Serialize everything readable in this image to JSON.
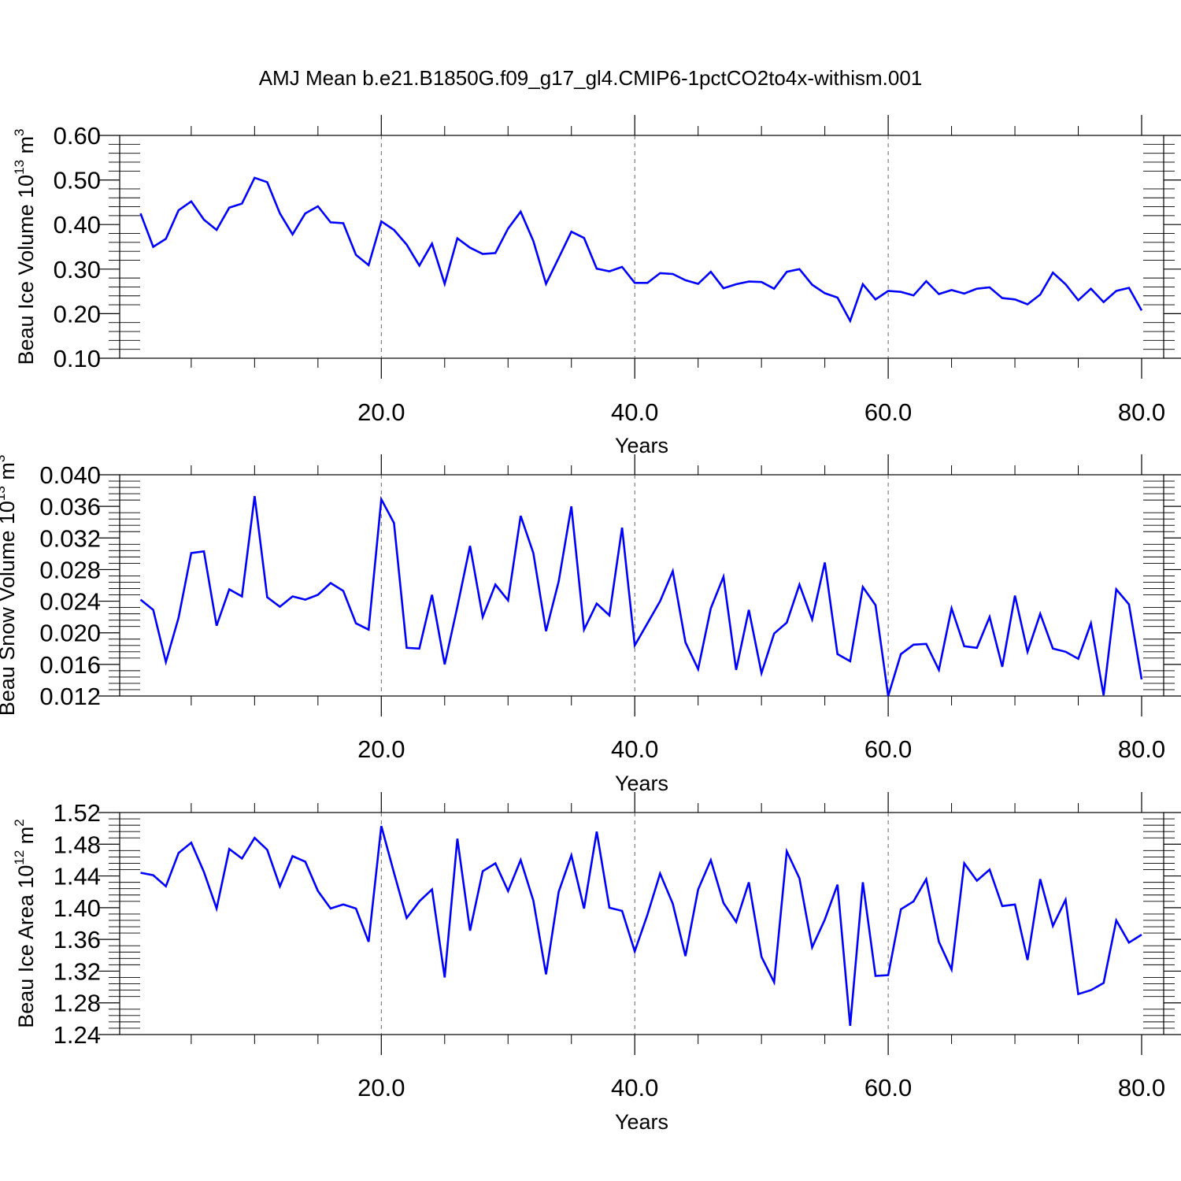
{
  "page": {
    "title": "AMJ Mean b.e21.B1850G.f09_g17_gl4.CMIP6-1pctCO2to4x-withism.001"
  },
  "colors": {
    "line": "#0000ff",
    "axis": "#000000"
  },
  "chart_data": [
    {
      "type": "line",
      "ylabel": "Beau Ice Volume",
      "ylabel_unit_base": "10",
      "ylabel_unit_exp": "13",
      "ylabel_unit_tail": "m",
      "ylabel_unit_tail_exp": "3",
      "xlabel": "Years",
      "xlim": [
        1,
        80
      ],
      "ylim": [
        0.1,
        0.6
      ],
      "yticks": [
        "0.10",
        "0.20",
        "0.30",
        "0.40",
        "0.50",
        "0.60"
      ],
      "xticks": [
        "20.0",
        "40.0",
        "60.0",
        "80.0"
      ],
      "grid_x": [
        20,
        40,
        60
      ],
      "series": [
        {
          "x": [
            1,
            2,
            3,
            4,
            5,
            6,
            7,
            8,
            9,
            10,
            11,
            12,
            13,
            14,
            15,
            16,
            17,
            18,
            19,
            20,
            21,
            22,
            23,
            24,
            25,
            26,
            27,
            28,
            29,
            30,
            31,
            32,
            33,
            34,
            35,
            36,
            37,
            38,
            39,
            40,
            41,
            42,
            43,
            44,
            45,
            46,
            47,
            48,
            49,
            50,
            51,
            52,
            53,
            54,
            55,
            56,
            57,
            58,
            59,
            60,
            61,
            62,
            63,
            64,
            65,
            66,
            67,
            68,
            69,
            70,
            71,
            72,
            73,
            74,
            75,
            76,
            77,
            78,
            79,
            80
          ],
          "values": [
            0.425,
            0.35,
            0.368,
            0.432,
            0.452,
            0.411,
            0.388,
            0.438,
            0.447,
            0.505,
            0.495,
            0.425,
            0.378,
            0.425,
            0.441,
            0.405,
            0.403,
            0.332,
            0.309,
            0.407,
            0.388,
            0.355,
            0.308,
            0.357,
            0.267,
            0.369,
            0.348,
            0.334,
            0.336,
            0.391,
            0.429,
            0.363,
            0.267,
            0.325,
            0.384,
            0.37,
            0.301,
            0.295,
            0.305,
            0.269,
            0.269,
            0.291,
            0.289,
            0.275,
            0.267,
            0.294,
            0.257,
            0.266,
            0.272,
            0.271,
            0.256,
            0.294,
            0.3,
            0.265,
            0.246,
            0.236,
            0.184,
            0.266,
            0.232,
            0.251,
            0.249,
            0.241,
            0.273,
            0.244,
            0.253,
            0.245,
            0.256,
            0.259,
            0.235,
            0.232,
            0.221,
            0.243,
            0.292,
            0.266,
            0.23,
            0.256,
            0.226,
            0.251,
            0.258,
            0.207
          ]
        }
      ]
    },
    {
      "type": "line",
      "ylabel": "Beau Snow Volume",
      "ylabel_unit_base": "10",
      "ylabel_unit_exp": "13",
      "ylabel_unit_tail": "m",
      "ylabel_unit_tail_exp": "3",
      "xlabel": "Years",
      "xlim": [
        1,
        80
      ],
      "ylim": [
        0.012,
        0.04
      ],
      "yticks": [
        "0.012",
        "0.016",
        "0.020",
        "0.024",
        "0.028",
        "0.032",
        "0.036",
        "0.040"
      ],
      "xticks": [
        "20.0",
        "40.0",
        "60.0",
        "80.0"
      ],
      "grid_x": [
        20,
        40,
        60
      ],
      "series": [
        {
          "x": [
            1,
            2,
            3,
            4,
            5,
            6,
            7,
            8,
            9,
            10,
            11,
            12,
            13,
            14,
            15,
            16,
            17,
            18,
            19,
            20,
            21,
            22,
            23,
            24,
            25,
            26,
            27,
            28,
            29,
            30,
            31,
            32,
            33,
            34,
            35,
            36,
            37,
            38,
            39,
            40,
            41,
            42,
            43,
            44,
            45,
            46,
            47,
            48,
            49,
            50,
            51,
            52,
            53,
            54,
            55,
            56,
            57,
            58,
            59,
            60,
            61,
            62,
            63,
            64,
            65,
            66,
            67,
            68,
            69,
            70,
            71,
            72,
            73,
            74,
            75,
            76,
            77,
            78,
            79,
            80
          ],
          "values": [
            0.0242,
            0.0229,
            0.0163,
            0.0219,
            0.0301,
            0.0303,
            0.0209,
            0.0255,
            0.0246,
            0.0373,
            0.0245,
            0.0233,
            0.0246,
            0.0242,
            0.0248,
            0.0263,
            0.0253,
            0.0212,
            0.0204,
            0.0369,
            0.0339,
            0.0181,
            0.018,
            0.0248,
            0.016,
            0.0233,
            0.031,
            0.022,
            0.0261,
            0.0241,
            0.0348,
            0.0301,
            0.0202,
            0.0265,
            0.036,
            0.0204,
            0.0237,
            0.0222,
            0.0333,
            0.0184,
            0.0212,
            0.024,
            0.0278,
            0.0188,
            0.0154,
            0.0231,
            0.0271,
            0.0153,
            0.0229,
            0.0149,
            0.0199,
            0.0213,
            0.0261,
            0.0217,
            0.0289,
            0.0173,
            0.0164,
            0.0258,
            0.0235,
            0.012,
            0.0173,
            0.0185,
            0.0186,
            0.0153,
            0.0231,
            0.0183,
            0.0181,
            0.022,
            0.0157,
            0.0247,
            0.0176,
            0.0224,
            0.018,
            0.0176,
            0.0167,
            0.0212,
            0.0121,
            0.0255,
            0.0236,
            0.0141
          ]
        }
      ]
    },
    {
      "type": "line",
      "ylabel": "Beau Ice Area",
      "ylabel_unit_base": "10",
      "ylabel_unit_exp": "12",
      "ylabel_unit_tail": "m",
      "ylabel_unit_tail_exp": "2",
      "xlabel": "Years",
      "xlim": [
        1,
        80
      ],
      "ylim": [
        1.24,
        1.52
      ],
      "yticks": [
        "1.24",
        "1.28",
        "1.32",
        "1.36",
        "1.40",
        "1.44",
        "1.48",
        "1.52"
      ],
      "xticks": [
        "20.0",
        "40.0",
        "60.0",
        "80.0"
      ],
      "grid_x": [
        20,
        40,
        60
      ],
      "series": [
        {
          "x": [
            1,
            2,
            3,
            4,
            5,
            6,
            7,
            8,
            9,
            10,
            11,
            12,
            13,
            14,
            15,
            16,
            17,
            18,
            19,
            20,
            21,
            22,
            23,
            24,
            25,
            26,
            27,
            28,
            29,
            30,
            31,
            32,
            33,
            34,
            35,
            36,
            37,
            38,
            39,
            40,
            41,
            42,
            43,
            44,
            45,
            46,
            47,
            48,
            49,
            50,
            51,
            52,
            53,
            54,
            55,
            56,
            57,
            58,
            59,
            60,
            61,
            62,
            63,
            64,
            65,
            66,
            67,
            68,
            69,
            70,
            71,
            72,
            73,
            74,
            75,
            76,
            77,
            78,
            79,
            80
          ],
          "values": [
            1.444,
            1.441,
            1.427,
            1.469,
            1.482,
            1.445,
            1.399,
            1.474,
            1.462,
            1.488,
            1.473,
            1.427,
            1.465,
            1.458,
            1.421,
            1.399,
            1.404,
            1.399,
            1.357,
            1.503,
            1.444,
            1.387,
            1.408,
            1.423,
            1.312,
            1.487,
            1.371,
            1.446,
            1.456,
            1.421,
            1.46,
            1.409,
            1.316,
            1.42,
            1.466,
            1.399,
            1.496,
            1.4,
            1.396,
            1.345,
            1.391,
            1.443,
            1.405,
            1.339,
            1.423,
            1.46,
            1.406,
            1.382,
            1.432,
            1.338,
            1.306,
            1.471,
            1.437,
            1.35,
            1.385,
            1.429,
            1.251,
            1.432,
            1.314,
            1.315,
            1.398,
            1.408,
            1.436,
            1.357,
            1.322,
            1.456,
            1.434,
            1.448,
            1.402,
            1.404,
            1.334,
            1.436,
            1.377,
            1.41,
            1.291,
            1.296,
            1.305,
            1.384,
            1.356,
            1.366
          ]
        }
      ]
    }
  ]
}
